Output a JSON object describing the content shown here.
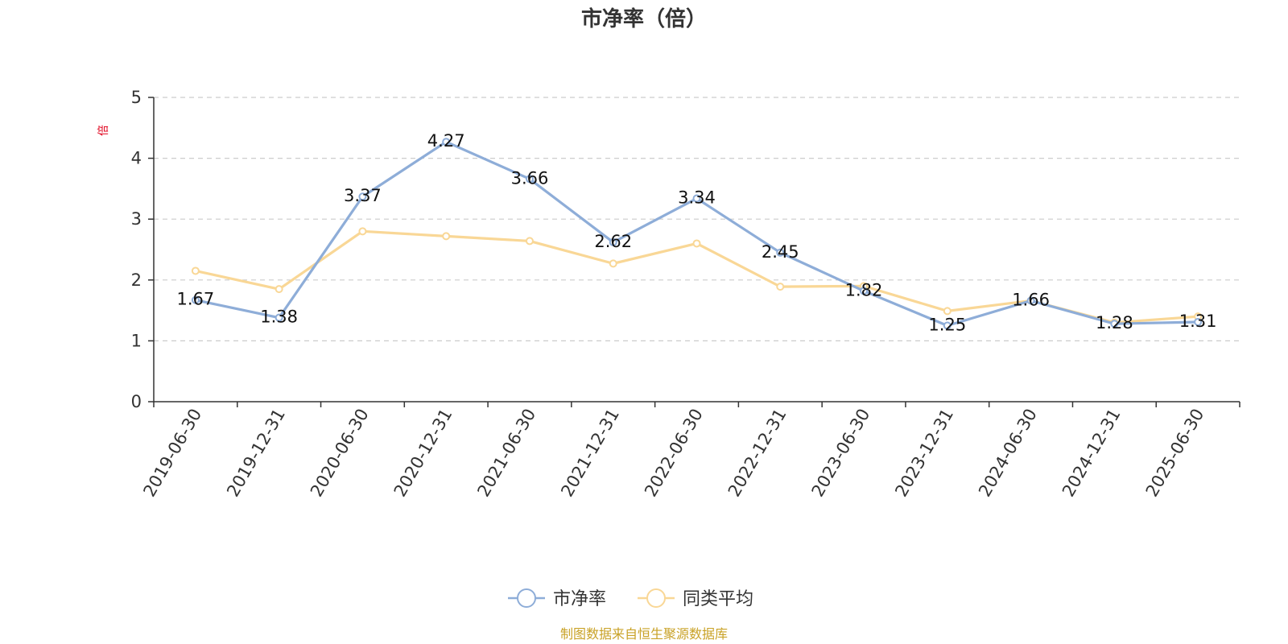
{
  "chart_data": {
    "type": "line",
    "title": "市净率（倍）",
    "ylabel": "倍",
    "ylim": [
      0,
      5
    ],
    "yticks": [
      0,
      1,
      2,
      3,
      4,
      5
    ],
    "categories": [
      "2019-06-30",
      "2019-12-31",
      "2020-06-30",
      "2020-12-31",
      "2021-06-30",
      "2021-12-31",
      "2022-06-30",
      "2022-12-31",
      "2023-06-30",
      "2023-12-31",
      "2024-06-30",
      "2024-12-31",
      "2025-06-30"
    ],
    "series": [
      {
        "name": "市净率",
        "color": "#8eadd8",
        "values": [
          1.67,
          1.38,
          3.37,
          4.27,
          3.66,
          2.62,
          3.34,
          2.45,
          1.82,
          1.25,
          1.66,
          1.28,
          1.31
        ],
        "labels": [
          "1.67",
          "1.38",
          "3.37",
          "4.27",
          "3.66",
          "2.62",
          "3.34",
          "2.45",
          "1.82",
          "1.25",
          "1.66",
          "1.28",
          "1.31"
        ]
      },
      {
        "name": "同类平均",
        "color": "#f9d796",
        "values": [
          2.15,
          1.85,
          2.8,
          2.72,
          2.64,
          2.27,
          2.6,
          1.89,
          1.9,
          1.49,
          1.66,
          1.3,
          1.4
        ]
      }
    ],
    "grid": true,
    "legend": "bottom-center",
    "source": "制图数据来自恒生聚源数据库"
  }
}
